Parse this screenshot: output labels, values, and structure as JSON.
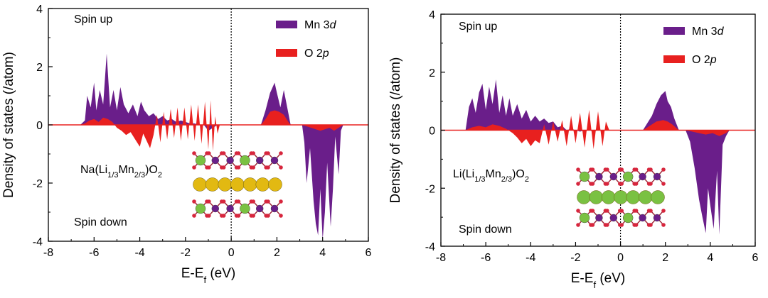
{
  "chart_data": [
    {
      "type": "area",
      "title": "",
      "xlabel_main": "E-E",
      "xlabel_sub": "f",
      "xlabel_tail": " (eV)",
      "ylabel": "Density of states (/atom)",
      "xlim": [
        -8,
        6
      ],
      "ylim": [
        -4,
        4
      ],
      "xticks": [
        -8,
        -6,
        -4,
        -2,
        0,
        2,
        4,
        6
      ],
      "yticks": [
        -4,
        -2,
        0,
        2,
        4
      ],
      "fermi_level": 0,
      "legend_placement": "top-right",
      "annotations": {
        "spin_up": "Spin up",
        "spin_down": "Spin down"
      },
      "structure_label": {
        "prefix": "Na(Li",
        "sub1": "1/3",
        "mid": "Mn",
        "sub2": "2/3",
        "suffix": ")O",
        "sub3": "2"
      },
      "structure_layers": [
        "Li/Mn-O",
        "Na",
        "Li/Mn-O"
      ],
      "series": [
        {
          "name": "Mn 3d",
          "label_main": "Mn 3",
          "label_italic": "d",
          "color": "#6a1e8a",
          "x": [
            -6.6,
            -6.4,
            -6.3,
            -6.15,
            -6.0,
            -5.9,
            -5.75,
            -5.6,
            -5.45,
            -5.3,
            -5.15,
            -5.0,
            -4.85,
            -4.7,
            -4.5,
            -4.3,
            -4.1,
            -3.95,
            -3.8,
            -3.6,
            -3.4,
            -3.2,
            -3.0,
            -2.8,
            -2.6,
            -2.4,
            -2.2,
            -2.0,
            -1.8,
            -1.6,
            -1.4,
            -1.2,
            -1.0,
            -0.8,
            -0.6,
            -0.5,
            1.3,
            1.5,
            1.7,
            1.9,
            2.0,
            2.15,
            2.3,
            2.45,
            2.6,
            3.1,
            3.2,
            3.3,
            3.45,
            3.6,
            3.7,
            3.8,
            3.9,
            4.0,
            4.1,
            4.2,
            4.35,
            4.45,
            4.55,
            4.7,
            4.8,
            4.9
          ],
          "y": [
            0,
            0.15,
            1.0,
            0.6,
            1.45,
            0.5,
            1.2,
            0.7,
            2.45,
            0.6,
            1.2,
            0.5,
            1.3,
            0.7,
            0.4,
            0.7,
            0.3,
            0.8,
            0.5,
            0.3,
            0.4,
            0.2,
            0.3,
            0.15,
            0.2,
            0.1,
            0.15,
            0.1,
            0.05,
            0.05,
            0.0,
            0.0,
            -0.2,
            -0.1,
            0,
            0,
            0,
            0.5,
            1.1,
            1.45,
            1.1,
            0.6,
            1.2,
            0.6,
            0,
            0,
            -0.6,
            -2.0,
            -0.8,
            -2.6,
            -3.4,
            -3.8,
            -2.2,
            -3.95,
            -3.0,
            -1.3,
            -3.5,
            -2.2,
            -0.4,
            -1.7,
            -0.2,
            0
          ]
        },
        {
          "name": "O 2p",
          "label_main": "O 2",
          "label_italic": "p",
          "color": "#e8201f",
          "x": [
            -6.6,
            -6.4,
            -6.2,
            -6.0,
            -5.8,
            -5.6,
            -5.4,
            -5.2,
            -5.0,
            -4.8,
            -4.6,
            -4.4,
            -4.2,
            -4.0,
            -3.85,
            -3.7,
            -3.55,
            -3.4,
            -3.25,
            -3.1,
            -2.95,
            -2.8,
            -2.65,
            -2.5,
            -2.35,
            -2.2,
            -2.05,
            -1.9,
            -1.75,
            -1.6,
            -1.45,
            -1.3,
            -1.15,
            -1.0,
            -0.9,
            -0.8,
            -0.7,
            -0.6,
            -0.5,
            1.3,
            1.5,
            1.7,
            1.9,
            2.1,
            2.3,
            2.5,
            2.6,
            3.1,
            3.3,
            3.5,
            3.7,
            3.9,
            4.1,
            4.3,
            4.5,
            4.7,
            4.9
          ],
          "y": [
            0,
            0.05,
            0.15,
            0.2,
            0.1,
            0.25,
            0.2,
            0.1,
            -0.1,
            -0.2,
            -0.35,
            -0.25,
            -0.5,
            -0.75,
            -0.3,
            -0.55,
            -0.8,
            -0.35,
            0.35,
            -0.6,
            0.45,
            -0.5,
            0.55,
            -0.45,
            0.6,
            -0.55,
            0.6,
            -0.5,
            0.7,
            -0.55,
            0.7,
            -0.65,
            0.8,
            -0.85,
            0.85,
            -0.9,
            0.3,
            -0.3,
            0,
            0,
            0.2,
            0.45,
            0.5,
            0.45,
            0.35,
            0.1,
            0,
            0,
            -0.05,
            -0.1,
            -0.15,
            -0.2,
            -0.15,
            -0.1,
            -0.2,
            -0.1,
            0
          ]
        }
      ]
    },
    {
      "type": "area",
      "title": "",
      "xlabel_main": "E-E",
      "xlabel_sub": "f",
      "xlabel_tail": " (eV)",
      "ylabel": "Density of states (/atom)",
      "xlim": [
        -8,
        6
      ],
      "ylim": [
        -4,
        4
      ],
      "xticks": [
        -8,
        -6,
        -4,
        -2,
        0,
        2,
        4,
        6
      ],
      "yticks": [
        -4,
        -2,
        0,
        2,
        4
      ],
      "fermi_level": 0,
      "legend_placement": "top-right",
      "annotations": {
        "spin_up": "Spin up",
        "spin_down": "Spin down"
      },
      "structure_label": {
        "prefix": "Li(Li",
        "sub1": "1/3",
        "mid": "Mn",
        "sub2": "2/3",
        "suffix": ")O",
        "sub3": "2"
      },
      "structure_layers": [
        "Li/Mn-O",
        "Li",
        "Li/Mn-O"
      ],
      "series": [
        {
          "name": "Mn 3d",
          "label_main": "Mn 3",
          "label_italic": "d",
          "color": "#6a1e8a",
          "x": [
            -6.9,
            -6.75,
            -6.6,
            -6.45,
            -6.3,
            -6.15,
            -6.0,
            -5.85,
            -5.7,
            -5.55,
            -5.4,
            -5.25,
            -5.1,
            -4.95,
            -4.8,
            -4.6,
            -4.4,
            -4.2,
            -4.0,
            -3.8,
            -3.6,
            -3.4,
            -3.2,
            -3.0,
            -2.8,
            -2.6,
            -2.4,
            -2.2,
            -2.0,
            -1.8,
            -1.6,
            -1.4,
            -1.2,
            -1.0,
            -0.8,
            -0.6,
            1.0,
            1.2,
            1.4,
            1.6,
            1.8,
            2.0,
            2.1,
            2.25,
            2.4,
            2.6,
            2.9,
            3.1,
            3.3,
            3.5,
            3.65,
            3.8,
            3.9,
            4.0,
            4.15,
            4.3,
            4.4,
            4.55,
            4.7,
            4.85
          ],
          "y": [
            0,
            0.8,
            1.1,
            0.6,
            1.3,
            1.6,
            0.7,
            1.5,
            0.9,
            1.75,
            0.6,
            1.2,
            0.5,
            1.1,
            0.5,
            0.9,
            0.4,
            0.7,
            0.3,
            0.5,
            0.3,
            0.4,
            0.25,
            0.3,
            0.1,
            0.15,
            0.0,
            0.05,
            0.0,
            -0.05,
            0.0,
            0.0,
            -0.05,
            0.0,
            0.0,
            0,
            0,
            0.25,
            0.5,
            0.9,
            1.2,
            1.35,
            1.0,
            0.8,
            0.4,
            0,
            0,
            -0.4,
            -1.3,
            -2.4,
            -3.0,
            -3.55,
            -2.0,
            -2.6,
            -3.4,
            -1.4,
            -3.6,
            -0.5,
            -0.2,
            0
          ]
        },
        {
          "name": "O 2p",
          "label_main": "O 2",
          "label_italic": "p",
          "color": "#e8201f",
          "x": [
            -6.9,
            -6.6,
            -6.3,
            -6.0,
            -5.7,
            -5.4,
            -5.1,
            -4.8,
            -4.6,
            -4.4,
            -4.2,
            -4.0,
            -3.8,
            -3.6,
            -3.4,
            -3.2,
            -3.0,
            -2.8,
            -2.6,
            -2.4,
            -2.2,
            -2.0,
            -1.8,
            -1.6,
            -1.4,
            -1.2,
            -1.0,
            -0.8,
            -0.65,
            -0.5,
            1.0,
            1.3,
            1.6,
            1.9,
            2.1,
            2.3,
            2.6,
            2.9,
            3.2,
            3.5,
            3.8,
            4.1,
            4.4,
            4.7,
            4.85
          ],
          "y": [
            0,
            0.1,
            0.15,
            0.1,
            0.2,
            0.15,
            0.05,
            -0.1,
            -0.25,
            -0.45,
            -0.3,
            -0.55,
            -0.35,
            -0.45,
            0.2,
            -0.5,
            0.3,
            -0.4,
            0.35,
            -0.55,
            0.5,
            -0.45,
            0.6,
            -0.6,
            0.7,
            -0.65,
            0.65,
            -0.55,
            0.3,
            0,
            0,
            0.15,
            0.3,
            0.35,
            0.3,
            0.2,
            0,
            0,
            -0.05,
            -0.1,
            -0.15,
            -0.1,
            -0.2,
            -0.1,
            0
          ]
        }
      ]
    }
  ]
}
